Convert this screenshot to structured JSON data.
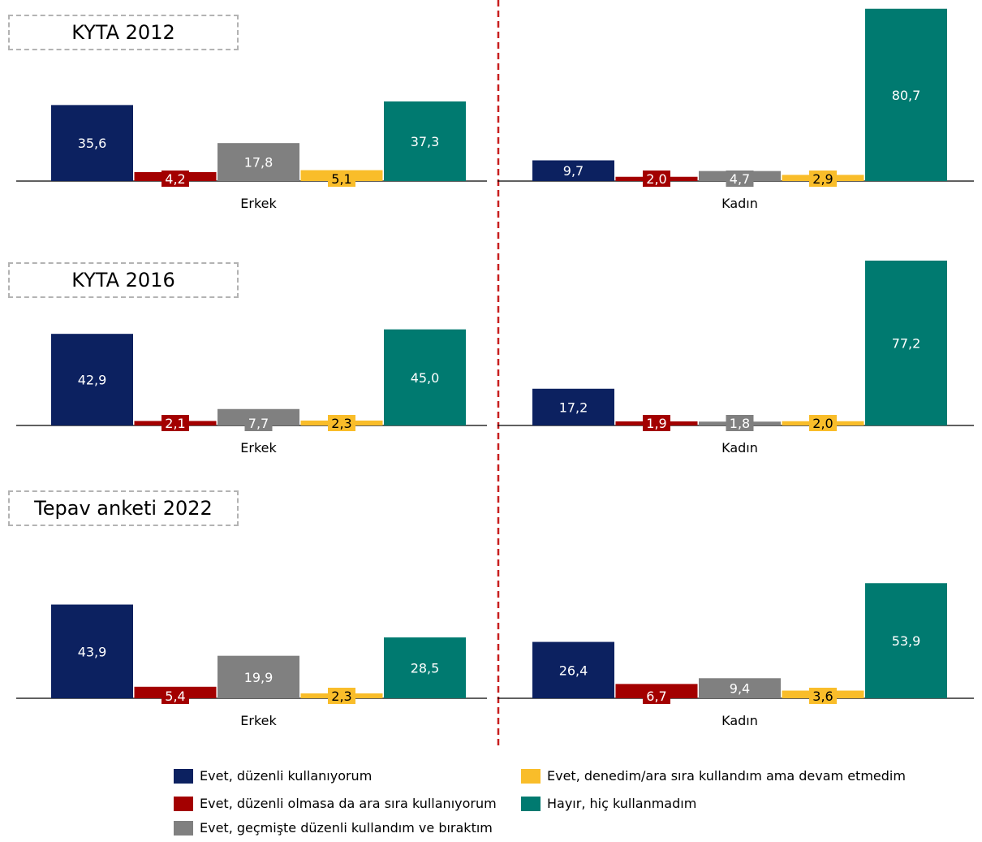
{
  "colors": {
    "s1": "#0c2160",
    "s2": "#a30000",
    "s3": "#808080",
    "s4": "#f9bd2a",
    "s5": "#007a70",
    "divider": "#c81e1e",
    "axis": "#000000"
  },
  "chart_data": {
    "type": "bar",
    "categories": [
      "Erkek",
      "Kadın"
    ],
    "series_names": [
      "Evet, düzenli kullanıyorum",
      "Evet, düzenli olmasa da ara sıra kullanıyorum",
      "Evet, geçmişte düzenli kullandım ve bıraktım",
      "Evet, denedim/ara sıra kullandım ama devam etmedim",
      "Hayır, hiç kullanmadım"
    ],
    "panels": [
      {
        "title": "KYTA 2012",
        "groups": [
          {
            "label": "Erkek",
            "values": [
              35.6,
              4.2,
              17.8,
              5.1,
              37.3
            ],
            "labels": [
              "35,6",
              "4,2",
              "17,8",
              "5,1",
              "37,3"
            ]
          },
          {
            "label": "Kadın",
            "values": [
              9.7,
              2.0,
              4.7,
              2.9,
              80.7
            ],
            "labels": [
              "9,7",
              "2,0",
              "4,7",
              "2,9",
              "80,7"
            ]
          }
        ]
      },
      {
        "title": "KYTA 2016",
        "groups": [
          {
            "label": "Erkek",
            "values": [
              42.9,
              2.1,
              7.7,
              2.3,
              45.0
            ],
            "labels": [
              "42,9",
              "2,1",
              "7,7",
              "2,3",
              "45,0"
            ]
          },
          {
            "label": "Kadın",
            "values": [
              17.2,
              1.9,
              1.8,
              2.0,
              77.2
            ],
            "labels": [
              "17,2",
              "1,9",
              "1,8",
              "2,0",
              "77,2"
            ]
          }
        ]
      },
      {
        "title": "Tepav anketi 2022",
        "groups": [
          {
            "label": "Erkek",
            "values": [
              43.9,
              5.4,
              19.9,
              2.3,
              28.5
            ],
            "labels": [
              "43,9",
              "5,4",
              "19,9",
              "2,3",
              "28,5"
            ]
          },
          {
            "label": "Kadın",
            "values": [
              26.4,
              6.7,
              9.4,
              3.6,
              53.9
            ],
            "labels": [
              "26,4",
              "6,7",
              "9,4",
              "3,6",
              "53,9"
            ]
          }
        ]
      }
    ]
  }
}
